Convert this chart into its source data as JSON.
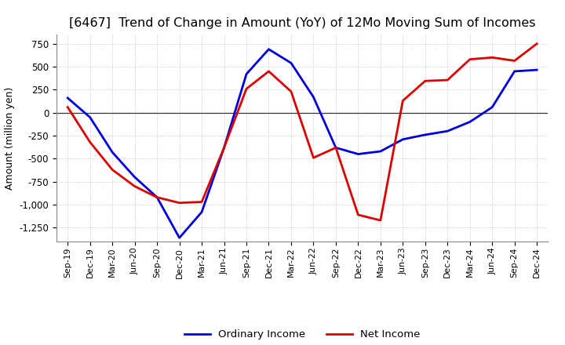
{
  "title": "[6467]  Trend of Change in Amount (YoY) of 12Mo Moving Sum of Incomes",
  "ylabel": "Amount (million yen)",
  "background_color": "#ffffff",
  "grid_color": "#bbbbbb",
  "x_labels": [
    "Sep-19",
    "Dec-19",
    "Mar-20",
    "Jun-20",
    "Sep-20",
    "Dec-20",
    "Mar-21",
    "Jun-21",
    "Sep-21",
    "Dec-21",
    "Mar-22",
    "Jun-22",
    "Sep-22",
    "Dec-22",
    "Mar-23",
    "Jun-23",
    "Sep-23",
    "Dec-23",
    "Mar-24",
    "Jun-24",
    "Sep-24",
    "Dec-24"
  ],
  "ordinary_income": [
    160,
    -50,
    -430,
    -700,
    -920,
    -1360,
    -1080,
    -380,
    420,
    690,
    540,
    170,
    -380,
    -450,
    -420,
    -290,
    -240,
    -200,
    -100,
    60,
    450,
    465
  ],
  "net_income": [
    60,
    -320,
    -620,
    -800,
    -920,
    -980,
    -970,
    -380,
    260,
    450,
    230,
    -490,
    -380,
    -1110,
    -1170,
    130,
    345,
    355,
    580,
    600,
    565,
    750
  ],
  "ordinary_color": "#0000dd",
  "net_color": "#dd0000",
  "ylim": [
    -1400,
    850
  ],
  "yticks": [
    -1250,
    -1000,
    -750,
    -500,
    -250,
    0,
    250,
    500,
    750
  ],
  "line_width": 2.0,
  "title_fontsize": 11.5,
  "legend_fontsize": 9.5
}
